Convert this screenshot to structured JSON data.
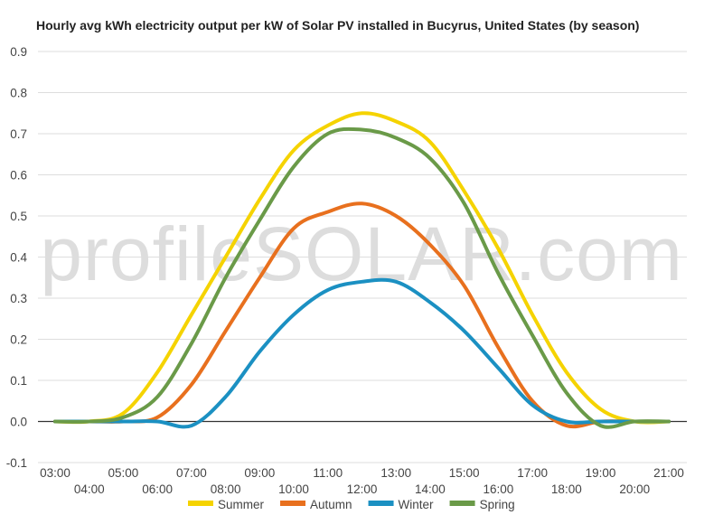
{
  "chart_data": {
    "type": "line",
    "title": "Hourly avg kWh electricity output per kW of Solar PV installed in Bucyrus, United States (by season)",
    "watermark": "profileSOLAR.com",
    "xlabel": "",
    "ylabel": "",
    "ylim": [
      -0.1,
      0.9
    ],
    "yticks": [
      "0.9",
      "0.8",
      "0.7",
      "0.6",
      "0.5",
      "0.4",
      "0.3",
      "0.2",
      "0.1",
      "0.0",
      "-0.1"
    ],
    "x": [
      "03:00",
      "04:00",
      "05:00",
      "06:00",
      "07:00",
      "08:00",
      "09:00",
      "10:00",
      "11:00",
      "12:00",
      "13:00",
      "14:00",
      "15:00",
      "16:00",
      "17:00",
      "18:00",
      "19:00",
      "20:00",
      "21:00"
    ],
    "grid": true,
    "legend": "bottom",
    "series": [
      {
        "name": "Summer",
        "color": "#f5d300",
        "values": [
          0,
          0,
          0.02,
          0.12,
          0.26,
          0.4,
          0.54,
          0.66,
          0.72,
          0.75,
          0.73,
          0.68,
          0.56,
          0.42,
          0.26,
          0.12,
          0.03,
          0,
          0
        ]
      },
      {
        "name": "Autumn",
        "color": "#e8701e",
        "values": [
          0,
          0,
          0,
          0.01,
          0.09,
          0.22,
          0.35,
          0.47,
          0.51,
          0.53,
          0.5,
          0.43,
          0.33,
          0.18,
          0.05,
          -0.01,
          0,
          0,
          0
        ]
      },
      {
        "name": "Winter",
        "color": "#1b90c2",
        "values": [
          0,
          0,
          0,
          0,
          -0.01,
          0.06,
          0.17,
          0.26,
          0.32,
          0.34,
          0.34,
          0.29,
          0.22,
          0.13,
          0.04,
          0,
          0,
          0,
          0
        ]
      },
      {
        "name": "Spring",
        "color": "#6a9a48",
        "values": [
          0,
          0,
          0.01,
          0.06,
          0.19,
          0.35,
          0.49,
          0.62,
          0.7,
          0.71,
          0.69,
          0.64,
          0.53,
          0.36,
          0.21,
          0.07,
          -0.01,
          0,
          0
        ]
      }
    ]
  }
}
